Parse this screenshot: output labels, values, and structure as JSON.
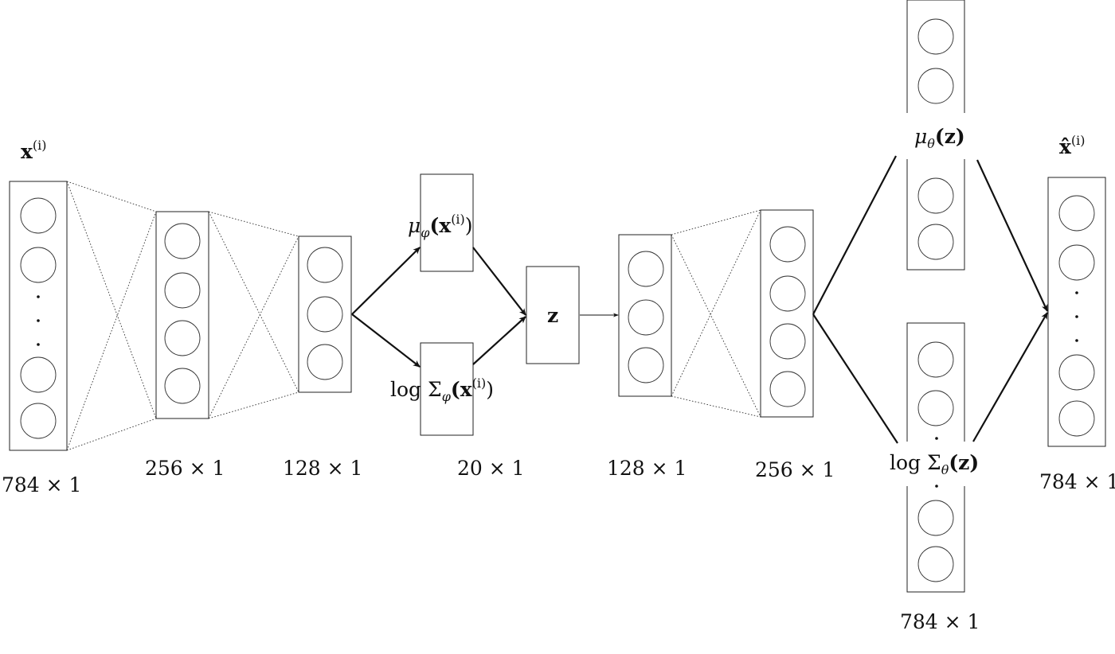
{
  "labels": {
    "input": {
      "main": "x",
      "sup": "(i)"
    },
    "output": {
      "main": "x̂",
      "sup": "(i)"
    },
    "mu_phi": {
      "main": "μ",
      "sub": "φ",
      "open": "(x",
      "sup": "(i)",
      "close": ")"
    },
    "logsigma_phi": {
      "main": "log Σ",
      "sub": "φ",
      "open": "(x",
      "sup": "(i)",
      "close": ")"
    },
    "z": "z",
    "mu_theta": {
      "main": "μ",
      "sub": "θ",
      "arg": "(z)"
    },
    "logsigma_theta": {
      "main": "log Σ",
      "sub": "θ",
      "arg": "(z)"
    }
  },
  "sizes": {
    "input": "784 × 1",
    "enc1": "256 × 1",
    "enc2": "128 × 1",
    "latent": "20 × 1",
    "dec1": "128 × 1",
    "dec2": "256 × 1",
    "dec_sigma": "784 × 1",
    "output": "784 × 1"
  }
}
